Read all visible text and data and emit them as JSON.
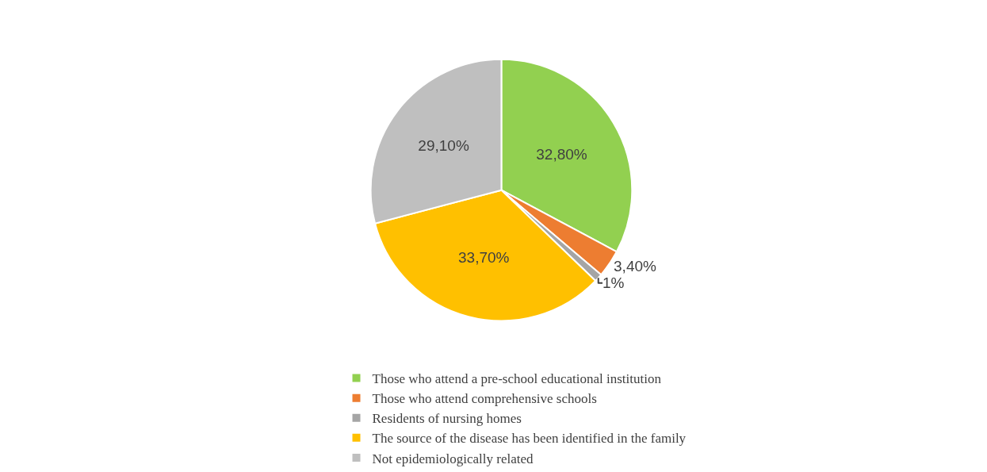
{
  "chart_data": {
    "type": "pie",
    "categories": [
      "Those who attend a pre-school educational institution",
      "Those who attend comprehensive schools",
      "Residents of nursing homes",
      "The source of the disease has been identified in the family",
      "Not epidemiologically related"
    ],
    "values": [
      32.8,
      3.4,
      1,
      33.7,
      29.1
    ],
    "colors": [
      "#92d050",
      "#ed7d31",
      "#a5a5a5",
      "#ffc000",
      "#bfbfbf"
    ],
    "value_labels": [
      "32,80%",
      "3,40%",
      "1%",
      "33,70%",
      "29,10%"
    ],
    "legend": "bottom"
  }
}
